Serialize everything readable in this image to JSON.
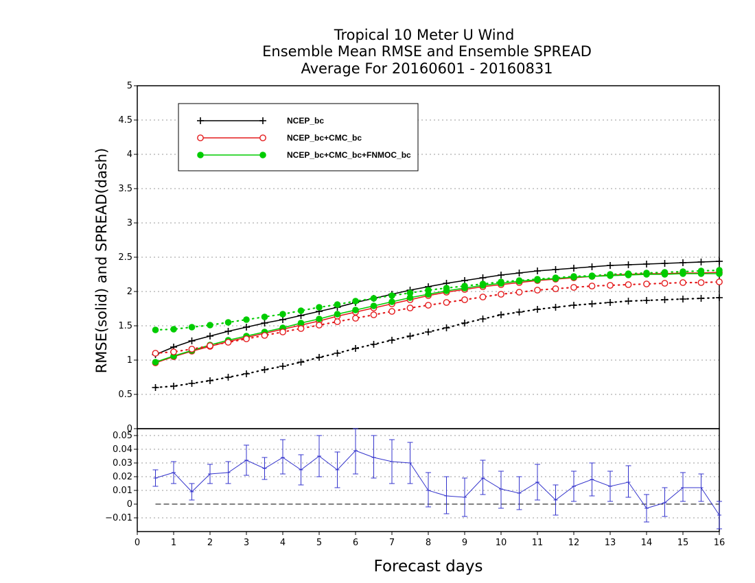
{
  "chart_data": [
    {
      "type": "line",
      "title": [
        "Tropical 10 Meter U Wind",
        "Ensemble Mean RMSE and Ensemble SPREAD",
        "Average For 20160601 - 20160831"
      ],
      "ylabel": "RMSE(solid) and SPREAD(dash)",
      "xlabel": "Forecast days",
      "xlim": [
        0,
        16
      ],
      "ylim": [
        0,
        5
      ],
      "yticks": [
        "0",
        "0.5",
        "1",
        "1.5",
        "2",
        "2.5",
        "3",
        "3.5",
        "4",
        "4.5",
        "5"
      ],
      "grid": true,
      "legend_position": "top-left",
      "x": [
        0.5,
        1,
        1.5,
        2,
        2.5,
        3,
        3.5,
        4,
        4.5,
        5,
        5.5,
        6,
        6.5,
        7,
        7.5,
        8,
        8.5,
        9,
        9.5,
        10,
        10.5,
        11,
        11.5,
        12,
        12.5,
        13,
        13.5,
        14,
        14.5,
        15,
        15.5,
        16
      ],
      "series": [
        {
          "name": "NCEP_bc",
          "style": "solid",
          "marker": "plus",
          "color": "#000000",
          "values": [
            1.08,
            1.19,
            1.28,
            1.35,
            1.42,
            1.48,
            1.54,
            1.59,
            1.65,
            1.71,
            1.77,
            1.84,
            1.9,
            1.96,
            2.02,
            2.07,
            2.12,
            2.16,
            2.2,
            2.24,
            2.27,
            2.3,
            2.32,
            2.34,
            2.36,
            2.38,
            2.39,
            2.4,
            2.41,
            2.42,
            2.43,
            2.44
          ]
        },
        {
          "name": "NCEP_bc+CMC_bc",
          "style": "solid",
          "marker": "open-circle",
          "color": "#e41a1c",
          "values": [
            0.96,
            1.05,
            1.13,
            1.2,
            1.27,
            1.33,
            1.39,
            1.45,
            1.51,
            1.57,
            1.64,
            1.7,
            1.76,
            1.82,
            1.88,
            1.94,
            1.99,
            2.03,
            2.07,
            2.1,
            2.13,
            2.16,
            2.18,
            2.2,
            2.22,
            2.24,
            2.25,
            2.26,
            2.26,
            2.27,
            2.27,
            2.28
          ]
        },
        {
          "name": "NCEP_bc+CMC_bc+FNMOC_bc",
          "style": "solid",
          "marker": "filled-circle",
          "color": "#00cc00",
          "values": [
            0.97,
            1.06,
            1.14,
            1.22,
            1.29,
            1.35,
            1.41,
            1.47,
            1.54,
            1.6,
            1.67,
            1.73,
            1.79,
            1.85,
            1.91,
            1.96,
            2.01,
            2.05,
            2.09,
            2.12,
            2.15,
            2.17,
            2.19,
            2.21,
            2.22,
            2.23,
            2.24,
            2.25,
            2.25,
            2.26,
            2.26,
            2.26
          ]
        },
        {
          "name": "NCEP_bc spread",
          "style": "dotted",
          "marker": "plus",
          "color": "#000000",
          "values": [
            0.6,
            0.62,
            0.66,
            0.7,
            0.75,
            0.8,
            0.86,
            0.91,
            0.97,
            1.04,
            1.1,
            1.17,
            1.23,
            1.29,
            1.35,
            1.41,
            1.47,
            1.54,
            1.6,
            1.66,
            1.7,
            1.74,
            1.77,
            1.8,
            1.82,
            1.84,
            1.86,
            1.87,
            1.88,
            1.89,
            1.9,
            1.91
          ]
        },
        {
          "name": "NCEP_bc+CMC_bc spread",
          "style": "dotted",
          "marker": "open-circle",
          "color": "#e41a1c",
          "values": [
            1.1,
            1.12,
            1.16,
            1.21,
            1.26,
            1.31,
            1.36,
            1.41,
            1.46,
            1.51,
            1.56,
            1.61,
            1.66,
            1.71,
            1.76,
            1.8,
            1.84,
            1.88,
            1.92,
            1.96,
            1.99,
            2.02,
            2.04,
            2.06,
            2.08,
            2.09,
            2.1,
            2.11,
            2.12,
            2.13,
            2.13,
            2.14
          ]
        },
        {
          "name": "NCEP_bc+CMC_bc+FNMOC_bc spread",
          "style": "dotted",
          "marker": "filled-circle",
          "color": "#00cc00",
          "values": [
            1.44,
            1.45,
            1.48,
            1.51,
            1.55,
            1.59,
            1.63,
            1.67,
            1.72,
            1.77,
            1.81,
            1.86,
            1.9,
            1.94,
            1.98,
            2.02,
            2.05,
            2.08,
            2.11,
            2.14,
            2.16,
            2.18,
            2.2,
            2.22,
            2.23,
            2.25,
            2.26,
            2.27,
            2.28,
            2.29,
            2.3,
            2.31
          ]
        }
      ]
    },
    {
      "type": "line",
      "xlabel": "Forecast days",
      "xlim": [
        0,
        16
      ],
      "xticks": [
        "0",
        "1",
        "2",
        "3",
        "4",
        "5",
        "6",
        "7",
        "8",
        "9",
        "10",
        "11",
        "12",
        "13",
        "14",
        "15",
        "16"
      ],
      "ylim": [
        -0.02,
        0.055
      ],
      "yticks": [
        "-0.01",
        "0",
        "0.01",
        "0.02",
        "0.03",
        "0.04",
        "0.05"
      ],
      "zero_line": "dashed",
      "series": [
        {
          "name": "",
          "color": "#3333cc",
          "marker": "plus",
          "error_bars": true,
          "x": [
            0.5,
            1,
            1.5,
            2,
            2.5,
            3,
            3.5,
            4,
            4.5,
            5,
            5.5,
            6,
            6.5,
            7,
            7.5,
            8,
            8.5,
            9,
            9.5,
            10,
            10.5,
            11,
            11.5,
            12,
            12.5,
            13,
            13.5,
            14,
            14.5,
            15,
            15.5,
            16
          ],
          "values": [
            0.019,
            0.023,
            0.009,
            0.022,
            0.023,
            0.032,
            0.026,
            0.034,
            0.025,
            0.035,
            0.025,
            0.039,
            0.034,
            0.031,
            0.03,
            0.01,
            0.006,
            0.005,
            0.019,
            0.011,
            0.008,
            0.016,
            0.003,
            0.013,
            0.018,
            0.013,
            0.016,
            -0.003,
            0.001,
            0.012,
            0.012,
            -0.008
          ],
          "lower": [
            0.013,
            0.015,
            0.003,
            0.015,
            0.015,
            0.021,
            0.018,
            0.022,
            0.014,
            0.02,
            0.012,
            0.022,
            0.019,
            0.015,
            0.015,
            -0.002,
            -0.007,
            -0.009,
            0.007,
            -0.003,
            -0.004,
            0.003,
            -0.008,
            0.002,
            0.006,
            0.002,
            0.005,
            -0.013,
            -0.009,
            0.002,
            0.002,
            -0.018
          ],
          "upper": [
            0.025,
            0.031,
            0.015,
            0.029,
            0.031,
            0.043,
            0.034,
            0.047,
            0.036,
            0.05,
            0.038,
            0.056,
            0.05,
            0.047,
            0.045,
            0.023,
            0.02,
            0.019,
            0.032,
            0.024,
            0.02,
            0.029,
            0.014,
            0.024,
            0.03,
            0.024,
            0.028,
            0.007,
            0.012,
            0.023,
            0.022,
            0.002
          ]
        }
      ]
    }
  ]
}
